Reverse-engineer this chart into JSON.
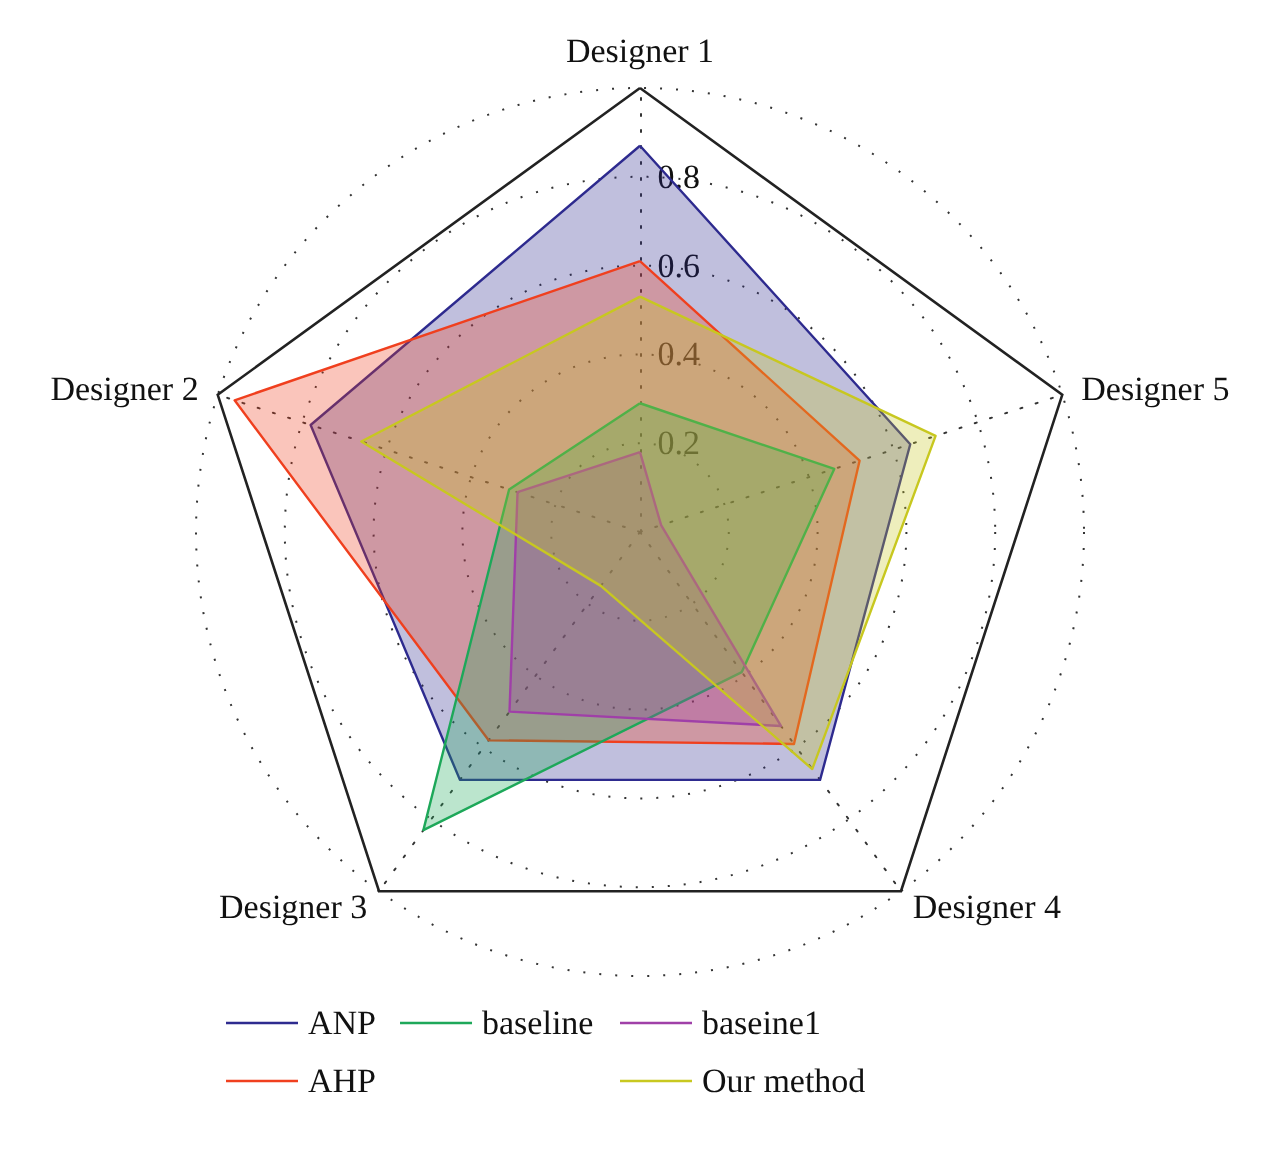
{
  "chart_data": {
    "type": "radar",
    "categories": [
      "Designer 1",
      "Designer 5",
      "Designer 4",
      "Designer 3",
      "Designer 2"
    ],
    "series": [
      {
        "name": "ANP",
        "color": "#2e2b8f",
        "values": [
          0.87,
          0.64,
          0.69,
          0.69,
          0.78
        ]
      },
      {
        "name": "AHP",
        "color": "#f0401f",
        "values": [
          0.61,
          0.52,
          0.59,
          0.58,
          0.96
        ]
      },
      {
        "name": "baseline",
        "color": "#1ea85a",
        "values": [
          0.29,
          0.46,
          0.39,
          0.83,
          0.31
        ]
      },
      {
        "name": "baseine1",
        "color": "#a040a8",
        "values": [
          0.18,
          0.05,
          0.54,
          0.5,
          0.29
        ]
      },
      {
        "name": "Our method",
        "color": "#c8c820",
        "values": [
          0.53,
          0.7,
          0.66,
          0.15,
          0.66
        ]
      }
    ],
    "ylim": [
      0,
      1
    ],
    "yticks": [
      0.2,
      0.4,
      0.6,
      0.8
    ],
    "grid": true,
    "legend": "bottom",
    "marker": "none",
    "line_style": "solid"
  }
}
